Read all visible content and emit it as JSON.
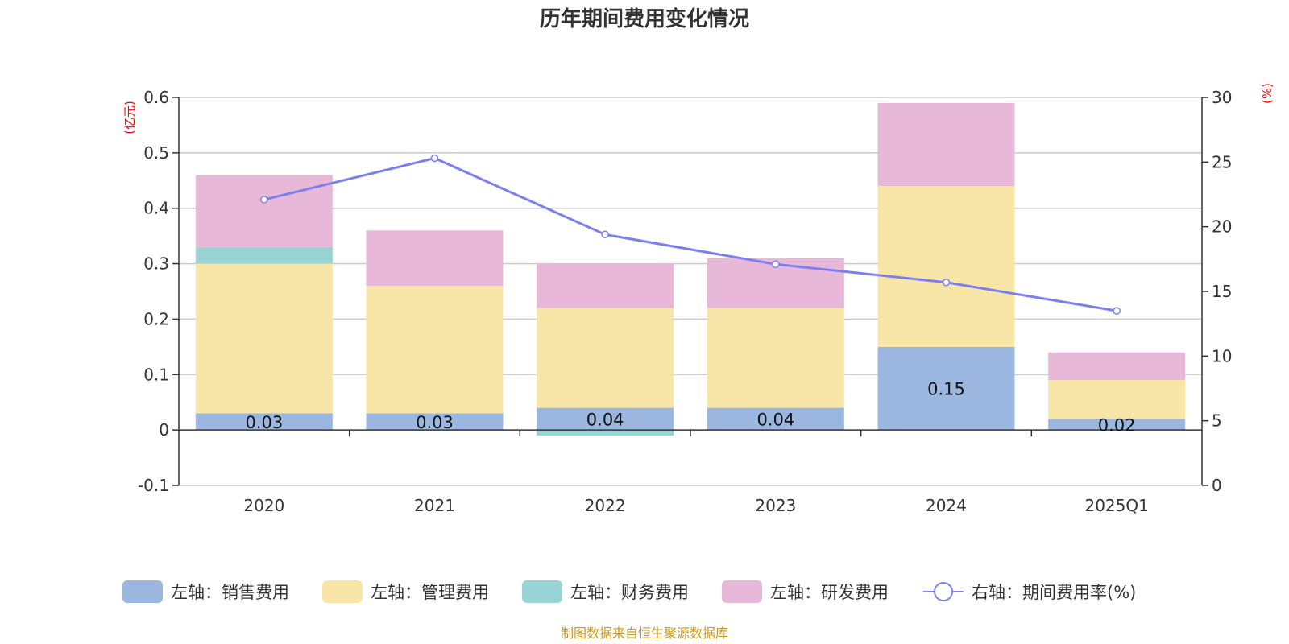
{
  "chart_data": {
    "type": "bar",
    "stacked": true,
    "title": "历年期间费用变化情况",
    "categories": [
      "2020",
      "2021",
      "2022",
      "2023",
      "2024",
      "2025Q1"
    ],
    "left_axis": {
      "unit": "(亿元)",
      "ylim": [
        -0.1,
        0.6
      ],
      "ticks": [
        -0.1,
        0,
        0.1,
        0.2,
        0.3,
        0.4,
        0.5,
        0.6
      ],
      "tick_labels": [
        "-0.1",
        "0",
        "0.1",
        "0.2",
        "0.3",
        "0.4",
        "0.5",
        "0.6"
      ]
    },
    "right_axis": {
      "unit": "(%)",
      "ylim": [
        0,
        30
      ],
      "ticks": [
        0,
        5,
        10,
        15,
        20,
        25,
        30
      ],
      "tick_labels": [
        "0",
        "5",
        "10",
        "15",
        "20",
        "25",
        "30"
      ]
    },
    "series": [
      {
        "name": "左轴：销售费用",
        "axis": "left",
        "color": "#9bb7e0",
        "values": [
          0.03,
          0.03,
          0.04,
          0.04,
          0.15,
          0.02
        ],
        "labels": [
          "0.03",
          "0.03",
          "0.04",
          "0.04",
          "0.15",
          "0.02"
        ]
      },
      {
        "name": "左轴：管理费用",
        "axis": "left",
        "color": "#f8e6a8",
        "values": [
          0.27,
          0.23,
          0.18,
          0.18,
          0.29,
          0.07
        ]
      },
      {
        "name": "左轴：财务费用",
        "axis": "left",
        "color": "#98d4d4",
        "values": [
          0.03,
          0.0,
          -0.01,
          0.0,
          0.0,
          0.0
        ]
      },
      {
        "name": "左轴：研发费用",
        "axis": "left",
        "color": "#e8b8d8",
        "values": [
          0.13,
          0.1,
          0.08,
          0.09,
          0.15,
          0.05
        ]
      }
    ],
    "line": {
      "name": "右轴：期间费用率(%)",
      "axis": "right",
      "color": "#7b7ff0",
      "values": [
        22.1,
        25.3,
        19.4,
        17.1,
        15.7,
        13.5
      ]
    },
    "grid": true,
    "legend": "bottom"
  },
  "source": "制图数据来自恒生聚源数据库"
}
